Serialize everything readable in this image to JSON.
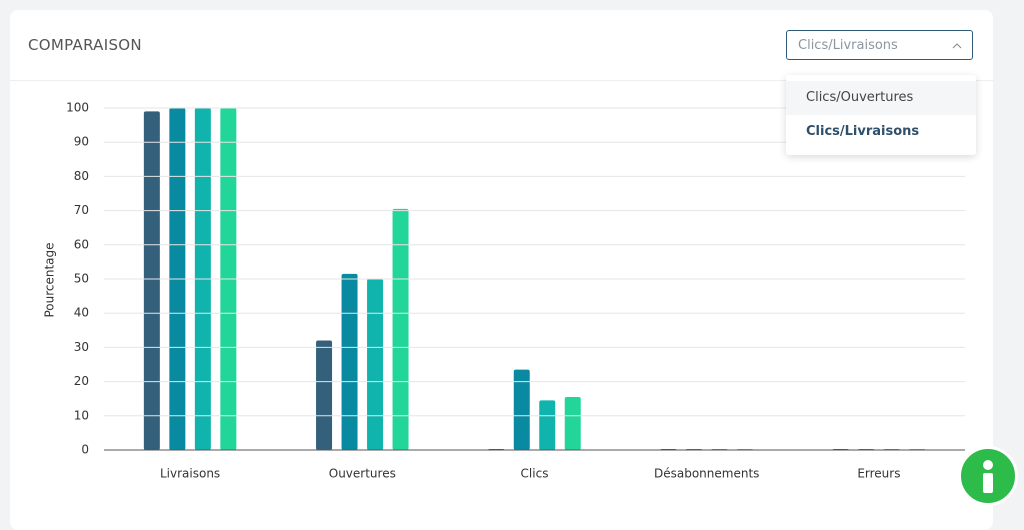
{
  "header": {
    "title": "COMPARAISON"
  },
  "select": {
    "value": "Clics/Livraisons",
    "options": [
      "Clics/Ouvertures",
      "Clics/Livraisons"
    ]
  },
  "chart_data": {
    "type": "bar",
    "y_label": "Pourcentage",
    "categories": [
      "Livraisons",
      "Ouvertures",
      "Clics",
      "Désabonnements",
      "Erreurs"
    ],
    "series": [
      {
        "color": "#34607c",
        "values": [
          99,
          32,
          0.3,
          0.3,
          0.3
        ]
      },
      {
        "color": "#0a8aa0",
        "values": [
          100,
          51.5,
          23.5,
          0.3,
          0.3
        ]
      },
      {
        "color": "#11b3ad",
        "values": [
          100,
          50,
          14.5,
          0.3,
          0.3
        ]
      },
      {
        "color": "#22d69a",
        "values": [
          100,
          70.5,
          15.5,
          0.3,
          0.3
        ]
      }
    ],
    "ylim": [
      0,
      100
    ],
    "yticks": [
      0,
      10,
      20,
      30,
      40,
      50,
      60,
      70,
      80,
      90,
      100
    ],
    "grid": true
  }
}
